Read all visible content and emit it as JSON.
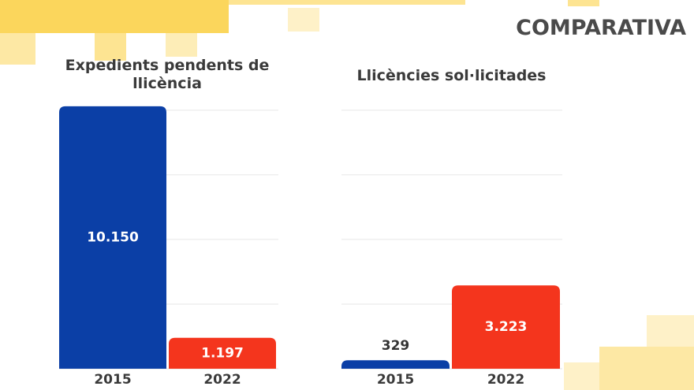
{
  "title": "COMPARATIVA",
  "chart_data": [
    {
      "type": "bar",
      "title": "Expedients pendents de llicència",
      "categories": [
        "2015",
        "2022"
      ],
      "values": [
        10150,
        1197
      ],
      "value_labels": [
        "10.150",
        "1.197"
      ],
      "colors": [
        "#0b3fa6",
        "#f4351d"
      ],
      "ylim": [
        0,
        11000
      ],
      "yticks": [
        0,
        2500,
        5000,
        7500,
        10000
      ],
      "grid": true
    },
    {
      "type": "bar",
      "title": "Llicències sol·licitades",
      "categories": [
        "2015",
        "2022"
      ],
      "values": [
        329,
        3223
      ],
      "value_labels": [
        "329",
        "3.223"
      ],
      "colors": [
        "#0b3fa6",
        "#f4351d"
      ],
      "ylim": [
        0,
        11000
      ],
      "yticks": [
        0,
        2500,
        5000,
        7500,
        10000
      ],
      "grid": true
    }
  ]
}
